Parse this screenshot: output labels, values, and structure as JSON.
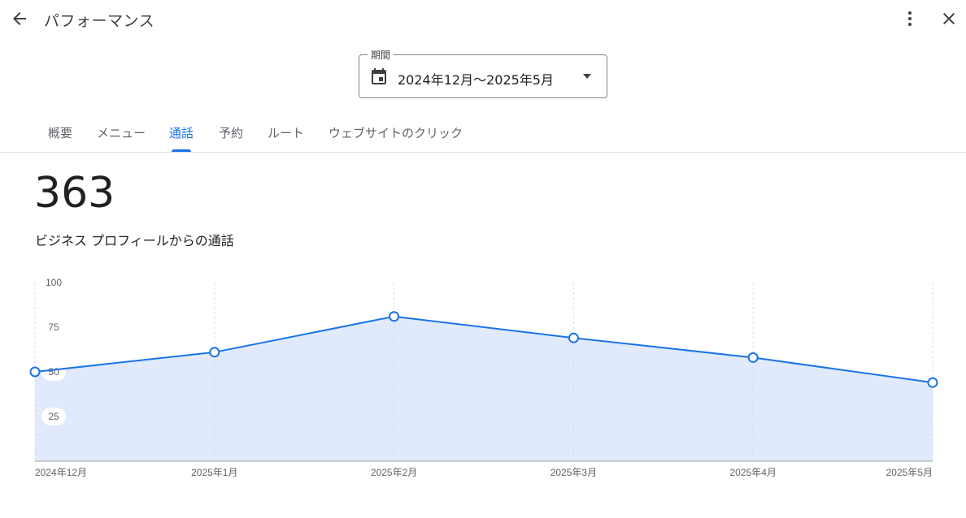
{
  "header": {
    "title": "パフォーマンス",
    "back_icon": "arrow-back-icon",
    "more_icon": "more-vert-icon",
    "close_icon": "close-icon"
  },
  "period": {
    "label": "期間",
    "value": "2024年12月〜2025年5月",
    "icon": "calendar-icon"
  },
  "tabs": [
    {
      "label": "概要"
    },
    {
      "label": "メニュー"
    },
    {
      "label": "通話"
    },
    {
      "label": "予約"
    },
    {
      "label": "ルート"
    },
    {
      "label": "ウェブサイトのクリック"
    }
  ],
  "active_tab": "通話",
  "summary": {
    "total": "363",
    "description": "ビジネス プロフィールからの通話"
  },
  "colors": {
    "accent": "#1a73e8",
    "area_fill": "#e0eafc"
  },
  "chart_data": {
    "type": "area",
    "categories": [
      "2024年12月",
      "2025年1月",
      "2025年2月",
      "2025年3月",
      "2025年4月",
      "2025年5月"
    ],
    "values": [
      50,
      61,
      81,
      69,
      58,
      44
    ],
    "ylim": [
      0,
      100
    ],
    "yticks": [
      "100",
      "75",
      "50",
      "25"
    ],
    "grid": true
  }
}
